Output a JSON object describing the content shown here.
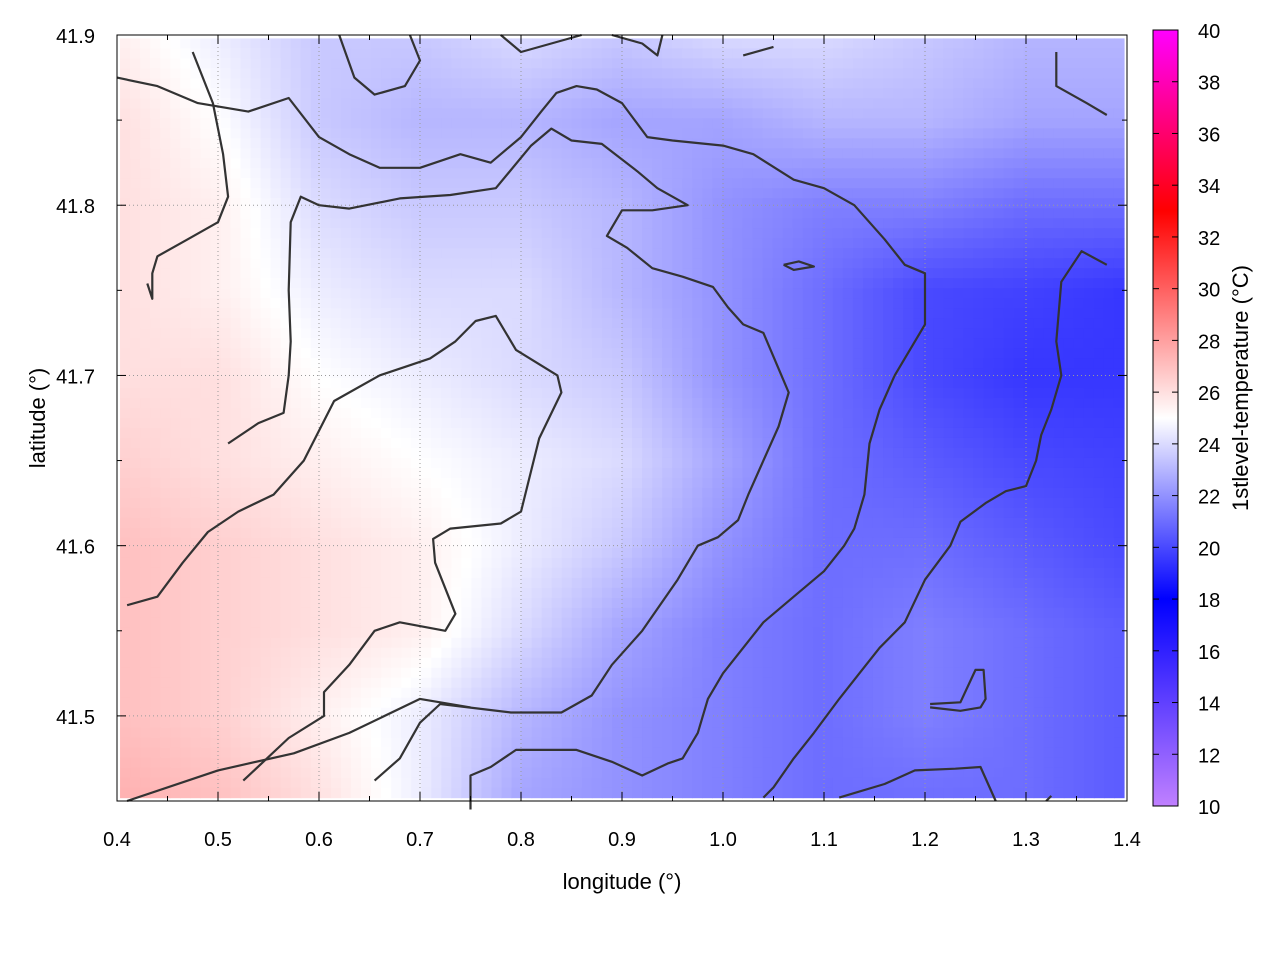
{
  "chart_data": {
    "type": "heatmap",
    "title": "",
    "xlabel": "longitude (°)",
    "ylabel": "latitude (°)",
    "colorbar_label": "1stlevel-temperature (°C)",
    "xlim": [
      0.4,
      1.4
    ],
    "ylim": [
      41.45,
      41.9
    ],
    "x_ticks": [
      "0.4",
      "0.5",
      "0.6",
      "0.7",
      "0.8",
      "0.9",
      "1.0",
      "1.1",
      "1.2",
      "1.3",
      "1.4"
    ],
    "y_ticks": [
      "41.5",
      "41.6",
      "41.7",
      "41.8",
      "41.9"
    ],
    "y_tick_values": [
      41.5,
      41.6,
      41.7,
      41.8,
      41.9
    ],
    "colorbar_range": [
      10,
      40
    ],
    "colorbar_ticks": [
      "10",
      "12",
      "14",
      "16",
      "18",
      "20",
      "22",
      "24",
      "26",
      "28",
      "30",
      "32",
      "34",
      "36",
      "38",
      "40"
    ],
    "colormap_stops": [
      {
        "value": 10,
        "color": "#c080ff"
      },
      {
        "value": 18,
        "color": "#0000ff"
      },
      {
        "value": 25,
        "color": "#ffffff"
      },
      {
        "value": 33,
        "color": "#ff0000"
      },
      {
        "value": 40,
        "color": "#ff00ff"
      }
    ],
    "grid": true,
    "grid_style": "dotted",
    "heatmap": {
      "x": [
        0.4,
        0.5,
        0.6,
        0.7,
        0.8,
        0.9,
        1.0,
        1.1,
        1.2,
        1.3,
        1.4
      ],
      "y": [
        41.9,
        41.85,
        41.8,
        41.75,
        41.7,
        41.65,
        41.6,
        41.55,
        41.5,
        41.45
      ],
      "values": [
        [
          25.5,
          24.5,
          23.5,
          23.5,
          24.0,
          23.5,
          24.0,
          24.0,
          23.5,
          23.0,
          23.0
        ],
        [
          26.0,
          25.0,
          23.5,
          23.0,
          23.0,
          22.5,
          22.5,
          23.0,
          23.0,
          22.5,
          22.5
        ],
        [
          26.0,
          25.5,
          24.0,
          23.5,
          23.5,
          23.0,
          22.0,
          21.5,
          21.5,
          21.0,
          21.0
        ],
        [
          26.0,
          25.5,
          24.5,
          24.0,
          24.0,
          23.0,
          22.0,
          21.0,
          20.0,
          19.8,
          19.5
        ],
        [
          26.0,
          26.0,
          25.0,
          24.5,
          24.0,
          23.5,
          22.0,
          21.0,
          20.0,
          19.5,
          19.5
        ],
        [
          26.5,
          26.0,
          25.5,
          25.0,
          24.5,
          24.0,
          22.5,
          21.0,
          20.5,
          20.0,
          19.8
        ],
        [
          27.0,
          26.5,
          26.0,
          25.5,
          24.5,
          23.5,
          22.0,
          21.0,
          21.0,
          20.5,
          20.0
        ],
        [
          27.0,
          26.5,
          26.0,
          25.5,
          24.0,
          22.5,
          21.5,
          21.0,
          21.5,
          21.0,
          20.5
        ],
        [
          27.0,
          26.5,
          25.5,
          24.5,
          23.0,
          22.0,
          21.5,
          21.0,
          21.5,
          21.0,
          20.5
        ],
        [
          27.5,
          27.0,
          26.0,
          24.5,
          22.5,
          22.0,
          21.5,
          21.0,
          21.0,
          21.0,
          20.5
        ]
      ]
    },
    "contours": [
      {
        "points": [
          [
            0.41,
            41.45
          ],
          [
            0.5,
            41.468
          ],
          [
            0.575,
            41.478
          ],
          [
            0.63,
            41.49
          ],
          [
            0.7,
            41.51
          ],
          [
            0.75,
            41.505
          ]
        ]
      },
      {
        "points": [
          [
            0.525,
            41.462
          ],
          [
            0.57,
            41.487
          ],
          [
            0.605,
            41.5
          ],
          [
            0.605,
            41.514
          ],
          [
            0.63,
            41.53
          ],
          [
            0.655,
            41.55
          ],
          [
            0.68,
            41.555
          ],
          [
            0.725,
            41.55
          ],
          [
            0.735,
            41.56
          ],
          [
            0.715,
            41.59
          ],
          [
            0.713,
            41.604
          ],
          [
            0.73,
            41.61
          ],
          [
            0.78,
            41.613
          ],
          [
            0.8,
            41.62
          ],
          [
            0.818,
            41.663
          ],
          [
            0.84,
            41.69
          ],
          [
            0.836,
            41.7
          ],
          [
            0.795,
            41.715
          ],
          [
            0.775,
            41.735
          ],
          [
            0.755,
            41.732
          ],
          [
            0.735,
            41.72
          ],
          [
            0.71,
            41.71
          ],
          [
            0.685,
            41.705
          ],
          [
            0.66,
            41.7
          ],
          [
            0.615,
            41.685
          ],
          [
            0.585,
            41.65
          ],
          [
            0.555,
            41.63
          ],
          [
            0.52,
            41.62
          ],
          [
            0.49,
            41.608
          ],
          [
            0.465,
            41.59
          ],
          [
            0.44,
            41.57
          ],
          [
            0.41,
            41.565
          ]
        ]
      },
      {
        "points": [
          [
            0.51,
            41.66
          ],
          [
            0.54,
            41.672
          ],
          [
            0.565,
            41.678
          ],
          [
            0.57,
            41.7
          ],
          [
            0.572,
            41.72
          ],
          [
            0.57,
            41.75
          ],
          [
            0.572,
            41.79
          ],
          [
            0.582,
            41.805
          ],
          [
            0.6,
            41.8
          ],
          [
            0.63,
            41.798
          ],
          [
            0.68,
            41.804
          ],
          [
            0.73,
            41.806
          ],
          [
            0.775,
            41.81
          ],
          [
            0.81,
            41.835
          ],
          [
            0.83,
            41.845
          ],
          [
            0.85,
            41.838
          ],
          [
            0.88,
            41.836
          ],
          [
            0.915,
            41.82
          ],
          [
            0.935,
            41.81
          ],
          [
            0.965,
            41.8
          ],
          [
            0.93,
            41.797
          ],
          [
            0.9,
            41.797
          ],
          [
            0.885,
            41.782
          ],
          [
            0.905,
            41.775
          ],
          [
            0.93,
            41.763
          ],
          [
            0.96,
            41.758
          ],
          [
            0.99,
            41.752
          ],
          [
            1.005,
            41.74
          ],
          [
            1.02,
            41.73
          ],
          [
            1.04,
            41.725
          ],
          [
            1.065,
            41.69
          ],
          [
            1.055,
            41.67
          ],
          [
            1.04,
            41.65
          ],
          [
            1.025,
            41.63
          ],
          [
            1.015,
            41.615
          ],
          [
            0.995,
            41.605
          ],
          [
            0.975,
            41.6
          ],
          [
            0.955,
            41.58
          ],
          [
            0.92,
            41.55
          ],
          [
            0.89,
            41.53
          ],
          [
            0.87,
            41.512
          ],
          [
            0.84,
            41.502
          ],
          [
            0.79,
            41.502
          ],
          [
            0.72,
            41.507
          ],
          [
            0.7,
            41.496
          ],
          [
            0.68,
            41.475
          ],
          [
            0.655,
            41.462
          ]
        ]
      },
      {
        "points": [
          [
            0.43,
            41.754
          ],
          [
            0.435,
            41.745
          ],
          [
            0.435,
            41.76
          ],
          [
            0.44,
            41.77
          ],
          [
            0.47,
            41.78
          ],
          [
            0.5,
            41.79
          ],
          [
            0.51,
            41.805
          ],
          [
            0.505,
            41.83
          ],
          [
            0.495,
            41.86
          ],
          [
            0.475,
            41.89
          ]
        ]
      },
      {
        "points": [
          [
            0.4,
            41.875
          ],
          [
            0.44,
            41.87
          ],
          [
            0.48,
            41.86
          ],
          [
            0.53,
            41.855
          ],
          [
            0.57,
            41.863
          ],
          [
            0.6,
            41.84
          ],
          [
            0.63,
            41.83
          ],
          [
            0.66,
            41.822
          ],
          [
            0.7,
            41.822
          ],
          [
            0.74,
            41.83
          ],
          [
            0.77,
            41.825
          ],
          [
            0.8,
            41.84
          ],
          [
            0.82,
            41.855
          ],
          [
            0.835,
            41.866
          ],
          [
            0.855,
            41.87
          ],
          [
            0.875,
            41.868
          ],
          [
            0.9,
            41.86
          ],
          [
            0.925,
            41.84
          ],
          [
            0.95,
            41.838
          ],
          [
            1.0,
            41.835
          ],
          [
            1.03,
            41.83
          ],
          [
            1.07,
            41.815
          ],
          [
            1.1,
            41.81
          ],
          [
            1.13,
            41.8
          ],
          [
            1.16,
            41.78
          ],
          [
            1.18,
            41.765
          ],
          [
            1.2,
            41.76
          ],
          [
            1.2,
            41.73
          ],
          [
            1.19,
            41.72
          ],
          [
            1.17,
            41.7
          ],
          [
            1.155,
            41.68
          ],
          [
            1.145,
            41.66
          ],
          [
            1.14,
            41.63
          ],
          [
            1.13,
            41.61
          ],
          [
            1.12,
            41.6
          ],
          [
            1.1,
            41.585
          ],
          [
            1.07,
            41.57
          ],
          [
            1.04,
            41.555
          ],
          [
            1.02,
            41.54
          ],
          [
            1.0,
            41.525
          ],
          [
            0.985,
            41.51
          ],
          [
            0.975,
            41.49
          ],
          [
            0.96,
            41.475
          ],
          [
            0.945,
            41.472
          ],
          [
            0.92,
            41.465
          ],
          [
            0.89,
            41.473
          ],
          [
            0.855,
            41.48
          ],
          [
            0.795,
            41.48
          ],
          [
            0.77,
            41.47
          ],
          [
            0.75,
            41.465
          ],
          [
            0.75,
            41.445
          ]
        ]
      },
      {
        "points": [
          [
            0.62,
            41.9
          ],
          [
            0.635,
            41.875
          ],
          [
            0.655,
            41.865
          ],
          [
            0.685,
            41.87
          ],
          [
            0.7,
            41.885
          ],
          [
            0.69,
            41.9
          ]
        ]
      },
      {
        "points": [
          [
            0.78,
            41.9
          ],
          [
            0.8,
            41.89
          ],
          [
            0.83,
            41.895
          ],
          [
            0.86,
            41.9
          ]
        ]
      },
      {
        "points": [
          [
            0.89,
            41.9
          ],
          [
            0.92,
            41.895
          ],
          [
            0.935,
            41.888
          ],
          [
            0.94,
            41.9
          ]
        ]
      },
      {
        "points": [
          [
            1.02,
            41.888
          ],
          [
            1.05,
            41.893
          ]
        ]
      },
      {
        "points": [
          [
            1.06,
            41.765
          ],
          [
            1.075,
            41.767
          ],
          [
            1.09,
            41.764
          ],
          [
            1.07,
            41.762
          ],
          [
            1.06,
            41.765
          ]
        ]
      },
      {
        "points": [
          [
            1.33,
            41.89
          ],
          [
            1.33,
            41.87
          ],
          [
            1.36,
            41.86
          ],
          [
            1.38,
            41.853
          ]
        ]
      },
      {
        "points": [
          [
            1.38,
            41.765
          ],
          [
            1.355,
            41.773
          ],
          [
            1.335,
            41.755
          ],
          [
            1.33,
            41.72
          ],
          [
            1.335,
            41.7
          ],
          [
            1.325,
            41.68
          ],
          [
            1.315,
            41.665
          ],
          [
            1.31,
            41.65
          ],
          [
            1.3,
            41.635
          ],
          [
            1.28,
            41.632
          ],
          [
            1.26,
            41.625
          ],
          [
            1.235,
            41.614
          ],
          [
            1.225,
            41.6
          ],
          [
            1.2,
            41.58
          ],
          [
            1.18,
            41.555
          ],
          [
            1.155,
            41.54
          ],
          [
            1.135,
            41.525
          ],
          [
            1.115,
            41.51
          ],
          [
            1.09,
            41.49
          ],
          [
            1.07,
            41.475
          ],
          [
            1.05,
            41.458
          ],
          [
            1.04,
            41.452
          ]
        ]
      },
      {
        "points": [
          [
            1.205,
            41.505
          ],
          [
            1.235,
            41.503
          ],
          [
            1.255,
            41.505
          ],
          [
            1.26,
            41.51
          ],
          [
            1.258,
            41.527
          ],
          [
            1.25,
            41.527
          ],
          [
            1.235,
            41.508
          ],
          [
            1.205,
            41.507
          ]
        ]
      },
      {
        "points": [
          [
            1.115,
            41.452
          ],
          [
            1.16,
            41.46
          ],
          [
            1.19,
            41.468
          ],
          [
            1.23,
            41.469
          ],
          [
            1.255,
            41.47
          ],
          [
            1.27,
            41.45
          ]
        ]
      },
      {
        "points": [
          [
            1.32,
            41.45
          ],
          [
            1.325,
            41.453
          ]
        ]
      }
    ]
  }
}
